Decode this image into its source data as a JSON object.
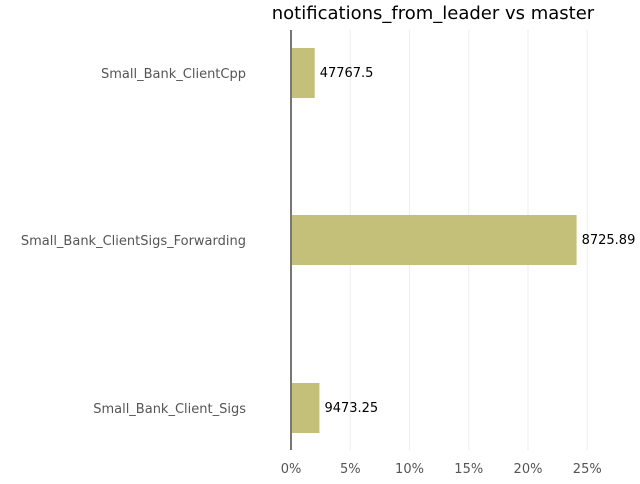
{
  "chart_data": {
    "type": "bar",
    "orientation": "horizontal",
    "title": "notifications_from_leader vs master",
    "xlabel": "",
    "ylabel": "",
    "xlim": [
      0,
      28
    ],
    "x_ticks": [
      0,
      5,
      10,
      15,
      20,
      25
    ],
    "x_tick_labels": [
      "0%",
      "5%",
      "10%",
      "15%",
      "20%",
      "25%"
    ],
    "grid": true,
    "categories": [
      "Small_Bank_ClientCpp",
      "Small_Bank_ClientSigs_Forwarding",
      "Small_Bank_Client_Sigs"
    ],
    "values": [
      2.0,
      24.1,
      2.4
    ],
    "data_labels": [
      "47767.5",
      "8725.89",
      "9473.25"
    ],
    "bar_color": "#c4c07a"
  }
}
